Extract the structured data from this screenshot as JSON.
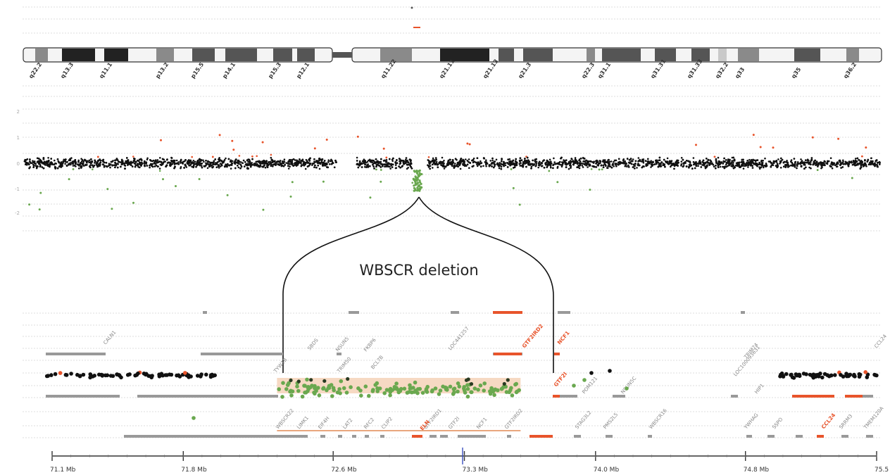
{
  "chart_data": [
    {
      "type": "ideogram",
      "bands": [
        "q22.2",
        "q13.3",
        "q11.1",
        "p13.2",
        "p15.5",
        "p14.1",
        "p15.3",
        "p12.1",
        "q11.22",
        "q21.11",
        "q21.13",
        "q21.3",
        "q22.3",
        "q31.1",
        "q31.31",
        "q31.33",
        "q32.2",
        "q33",
        "q35",
        "q36.2"
      ],
      "colors": {
        "black": "#222222",
        "dark": "#555555",
        "mid": "#8a8a8a",
        "light": "#c9c9c9",
        "outline": "#333333"
      }
    },
    {
      "type": "scatter",
      "y_ticks": [
        "2",
        "1",
        "0",
        "-1",
        "-2"
      ],
      "ylim": [
        -2.4,
        2.4
      ],
      "gap_range": [
        0.37,
        0.39
      ],
      "deletion_region": [
        0.462,
        0.469
      ],
      "series": [
        {
          "name": "",
          "color": "#e8542b"
        },
        {
          "name": "",
          "color": "#111111"
        },
        {
          "name": "",
          "color": "#6aa84f"
        }
      ]
    },
    {
      "type": "scatter",
      "annotation": "WBSCR deletion",
      "xlabel_ticks": [
        "71.1 Mb",
        "71.8 Mb",
        "72.6 Mb",
        "73.3 Mb",
        "74.0 Mb",
        "74.8 Mb",
        "75.5"
      ],
      "x_ticks_mb": [
        71.1,
        71.8,
        72.6,
        73.3,
        74.0,
        74.8,
        75.5
      ],
      "xlim": [
        71.1,
        75.5
      ],
      "deletion_range_mb": [
        72.3,
        73.6
      ],
      "deletion_log2_ratio": -0.95,
      "normal_log2_ratio": 0,
      "gene_labels_grey": [
        "CALN1",
        "TYW1B",
        "SBDS",
        "TRIM50",
        "NSUN5",
        "FKBP6",
        "BCL7B",
        "WBSCR22",
        "LIMK1",
        "EIF4H",
        "LAT2",
        "RFC2",
        "CLIP2",
        "GTF2IRD1",
        "GTF2I",
        "NCF1",
        "GTF2IRD2",
        "STAG3L2",
        "PMS2L5",
        "WBSCR16",
        "LOC441257",
        "POM121",
        "NSUN5C",
        "TRIM74",
        "LOC100093631",
        "HIP1",
        "YWHAG",
        "SSPO",
        "CCL24",
        "SRRM3",
        "TMEM120A"
      ],
      "gene_labels_orange": [
        "ELN",
        "GTF2I",
        "NCF1",
        "GTF2IRD2",
        "CCL24"
      ],
      "colors": {
        "orange": "#e8542b",
        "black": "#111111",
        "green": "#6aa84f",
        "grey": "#999999",
        "shade": "#f6d9c3",
        "axis": "#333333",
        "grid": "#dddddd"
      }
    }
  ]
}
